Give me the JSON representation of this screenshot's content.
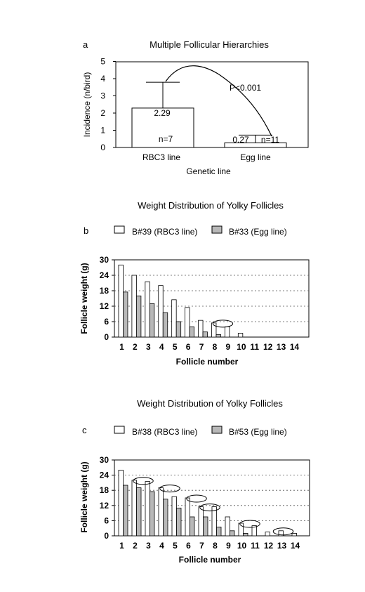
{
  "chart_data": [
    {
      "panel_letter": "a",
      "type": "bar",
      "title": "Multiple Follicular Hierarchies",
      "xlabel": "Genetic line",
      "ylabel": "Incidence (n/bird)",
      "ylim": [
        0,
        5
      ],
      "yticks": [
        "0",
        "1",
        "2",
        "3",
        "4",
        "5"
      ],
      "categories": [
        "RBC3 line",
        "Egg line"
      ],
      "values": [
        2.29,
        0.27
      ],
      "errors": [
        1.5,
        0.45
      ],
      "value_labels": [
        "2.29",
        "0.27"
      ],
      "n_labels": [
        "n=7",
        "n=11"
      ],
      "annotation": "P<0.001",
      "grid": false
    },
    {
      "panel_letter": "b",
      "type": "bar",
      "title": "Weight Distribution of Yolky Follicles",
      "xlabel": "Follicle number",
      "ylabel": "Follicle weight (g)",
      "ylim": [
        0,
        30
      ],
      "yticks": [
        "0",
        "6",
        "12",
        "18",
        "24",
        "30"
      ],
      "categories": [
        "1",
        "2",
        "3",
        "4",
        "5",
        "6",
        "7",
        "8",
        "9",
        "10",
        "11",
        "12",
        "13",
        "14"
      ],
      "series": [
        {
          "name": "B#39 (RBC3 line)",
          "color": "#ffffff",
          "values": [
            28,
            24,
            21.5,
            20,
            14.5,
            11.5,
            6.5,
            5.5,
            4,
            1.5,
            0,
            0,
            0,
            0
          ]
        },
        {
          "name": "B#33 (Egg line)",
          "color": "#b8b8b8",
          "values": [
            17.5,
            16,
            13,
            9.5,
            6,
            4,
            2,
            1,
            0,
            0,
            0,
            0,
            0,
            0
          ]
        }
      ],
      "highlight_ellipses_at_follicle": [
        8.5
      ],
      "grid": true,
      "legend_position": "top"
    },
    {
      "panel_letter": "c",
      "type": "bar",
      "title": "Weight Distribution of Yolky Follicles",
      "xlabel": "Follicle number",
      "ylabel": "Follicle weight (g)",
      "ylim": [
        0,
        30
      ],
      "yticks": [
        "0",
        "6",
        "12",
        "18",
        "24",
        "30"
      ],
      "categories": [
        "1",
        "2",
        "3",
        "4",
        "5",
        "6",
        "7",
        "8",
        "9",
        "10",
        "11",
        "12",
        "13",
        "14"
      ],
      "series": [
        {
          "name": "B#38 (RBC3 line)",
          "color": "#ffffff",
          "values": [
            26,
            22,
            21.5,
            19,
            15.5,
            15,
            11.5,
            11.5,
            7.5,
            5,
            4,
            1.5,
            2,
            1
          ]
        },
        {
          "name": "B#53 (Egg line)",
          "color": "#b8b8b8",
          "values": [
            20,
            19,
            17.5,
            14.5,
            11,
            7.5,
            7.5,
            3.5,
            2,
            1,
            0,
            0,
            0,
            0
          ]
        }
      ],
      "highlight_ellipses_at_follicle": [
        2.5,
        4.5,
        6.5,
        7.5,
        10.5,
        13
      ],
      "grid": true,
      "legend_position": "top"
    }
  ]
}
